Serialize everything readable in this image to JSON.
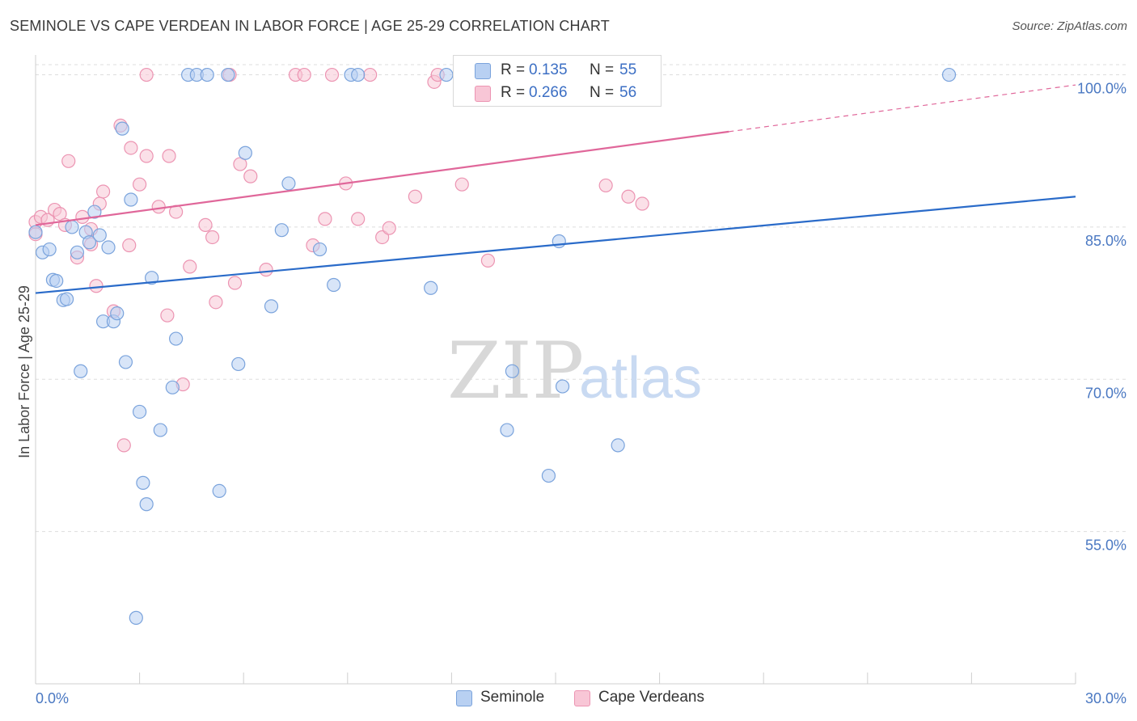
{
  "title": "SEMINOLE VS CAPE VERDEAN IN LABOR FORCE | AGE 25-29 CORRELATION CHART",
  "source": "Source: ZipAtlas.com",
  "watermark": {
    "zip": "ZIP",
    "atlas": "atlas"
  },
  "legend": {
    "seminole": {
      "r_label": "R =",
      "r_value": "0.135",
      "n_label": "N =",
      "n_value": "55"
    },
    "cape": {
      "r_label": "R =",
      "r_value": "0.266",
      "n_label": "N =",
      "n_value": "56"
    }
  },
  "bottom_legend": {
    "seminole": "Seminole",
    "cape": "Cape Verdeans"
  },
  "colors": {
    "seminole_fill": "#b8d0f2",
    "seminole_stroke": "#7aa3dc",
    "seminole_line": "#2a6bc9",
    "cape_fill": "#f8c6d6",
    "cape_stroke": "#ec94b2",
    "cape_line": "#e0679a",
    "tick_text": "#4a78c2",
    "grid": "#dddddd"
  },
  "chart_data": {
    "type": "scatter",
    "title": "SEMINOLE VS CAPE VERDEAN IN LABOR FORCE | AGE 25-29 CORRELATION CHART",
    "xlabel": "",
    "ylabel": "In Labor Force | Age 25-29",
    "xlim": [
      0,
      30
    ],
    "ylim": [
      40,
      101
    ],
    "x_tick_labels": [
      "0.0%",
      "30.0%"
    ],
    "y_ticks": [
      55,
      70,
      85,
      100
    ],
    "y_tick_labels": [
      "55.0%",
      "70.0%",
      "85.0%",
      "100.0%"
    ],
    "grid": true,
    "legend_position": "top-center",
    "series": [
      {
        "name": "Seminole",
        "r": 0.135,
        "n": 55,
        "trend": {
          "x": [
            0,
            30
          ],
          "y": [
            78.5,
            88.0
          ],
          "dashed_from": null
        },
        "points": [
          [
            0.0,
            84.5
          ],
          [
            0.2,
            82.5
          ],
          [
            0.4,
            82.8
          ],
          [
            0.5,
            79.8
          ],
          [
            0.6,
            79.7
          ],
          [
            0.8,
            77.8
          ],
          [
            0.9,
            77.9
          ],
          [
            1.05,
            85.0
          ],
          [
            1.2,
            82.5
          ],
          [
            1.3,
            70.8
          ],
          [
            1.45,
            84.5
          ],
          [
            1.55,
            83.5
          ],
          [
            1.7,
            86.5
          ],
          [
            1.85,
            84.2
          ],
          [
            1.95,
            75.7
          ],
          [
            2.1,
            83.0
          ],
          [
            2.25,
            75.7
          ],
          [
            2.35,
            76.5
          ],
          [
            2.5,
            94.7
          ],
          [
            2.6,
            71.7
          ],
          [
            2.75,
            87.7
          ],
          [
            2.9,
            46.5
          ],
          [
            3.0,
            66.8
          ],
          [
            3.1,
            59.8
          ],
          [
            3.2,
            57.7
          ],
          [
            3.35,
            80.0
          ],
          [
            3.6,
            65.0
          ],
          [
            3.95,
            69.2
          ],
          [
            4.05,
            74.0
          ],
          [
            4.4,
            100
          ],
          [
            4.65,
            100
          ],
          [
            4.95,
            100
          ],
          [
            5.3,
            59.0
          ],
          [
            5.55,
            100
          ],
          [
            5.85,
            71.5
          ],
          [
            6.05,
            92.3
          ],
          [
            6.8,
            77.2
          ],
          [
            7.1,
            84.7
          ],
          [
            7.3,
            89.3
          ],
          [
            8.2,
            82.8
          ],
          [
            8.6,
            79.3
          ],
          [
            9.1,
            100
          ],
          [
            9.3,
            100
          ],
          [
            11.4,
            79.0
          ],
          [
            11.85,
            100
          ],
          [
            13.6,
            65.0
          ],
          [
            13.75,
            70.8
          ],
          [
            14.3,
            100
          ],
          [
            14.8,
            60.5
          ],
          [
            15.1,
            83.6
          ],
          [
            15.2,
            69.3
          ],
          [
            16.2,
            100
          ],
          [
            16.8,
            63.5
          ],
          [
            17.1,
            100
          ],
          [
            26.35,
            100
          ]
        ]
      },
      {
        "name": "Cape Verdeans",
        "r": 0.266,
        "n": 56,
        "trend": {
          "x": [
            0,
            30
          ],
          "y": [
            85.2,
            99.0
          ],
          "dashed_from": 20
        },
        "points": [
          [
            0.0,
            85.5
          ],
          [
            0.15,
            86.0
          ],
          [
            0.35,
            85.7
          ],
          [
            0.55,
            86.7
          ],
          [
            0.7,
            86.3
          ],
          [
            0.85,
            85.2
          ],
          [
            0.95,
            91.5
          ],
          [
            1.2,
            82.0
          ],
          [
            1.35,
            86.0
          ],
          [
            1.6,
            84.8
          ],
          [
            1.6,
            83.3
          ],
          [
            1.75,
            79.2
          ],
          [
            1.85,
            87.3
          ],
          [
            1.95,
            88.5
          ],
          [
            2.25,
            76.7
          ],
          [
            2.45,
            95.0
          ],
          [
            2.55,
            63.5
          ],
          [
            2.7,
            83.2
          ],
          [
            2.75,
            92.8
          ],
          [
            3.0,
            89.2
          ],
          [
            3.2,
            92.0
          ],
          [
            3.2,
            100
          ],
          [
            3.55,
            87.0
          ],
          [
            3.8,
            76.3
          ],
          [
            3.85,
            92.0
          ],
          [
            4.05,
            86.5
          ],
          [
            4.25,
            69.5
          ],
          [
            4.45,
            81.1
          ],
          [
            4.9,
            85.2
          ],
          [
            5.1,
            84.0
          ],
          [
            5.2,
            77.6
          ],
          [
            5.6,
            100
          ],
          [
            5.75,
            79.5
          ],
          [
            5.9,
            91.2
          ],
          [
            6.2,
            90.0
          ],
          [
            6.65,
            80.8
          ],
          [
            7.5,
            100
          ],
          [
            7.75,
            100
          ],
          [
            8.0,
            83.2
          ],
          [
            8.35,
            85.8
          ],
          [
            8.55,
            100
          ],
          [
            8.95,
            89.3
          ],
          [
            9.3,
            85.8
          ],
          [
            9.65,
            100
          ],
          [
            10.0,
            84.0
          ],
          [
            10.2,
            84.9
          ],
          [
            10.95,
            88.0
          ],
          [
            11.5,
            99.3
          ],
          [
            11.6,
            100
          ],
          [
            12.3,
            89.2
          ],
          [
            13.05,
            81.7
          ],
          [
            14.45,
            100
          ],
          [
            16.45,
            89.1
          ],
          [
            17.1,
            88.0
          ],
          [
            17.5,
            87.3
          ],
          [
            0.0,
            84.3
          ]
        ]
      }
    ]
  }
}
